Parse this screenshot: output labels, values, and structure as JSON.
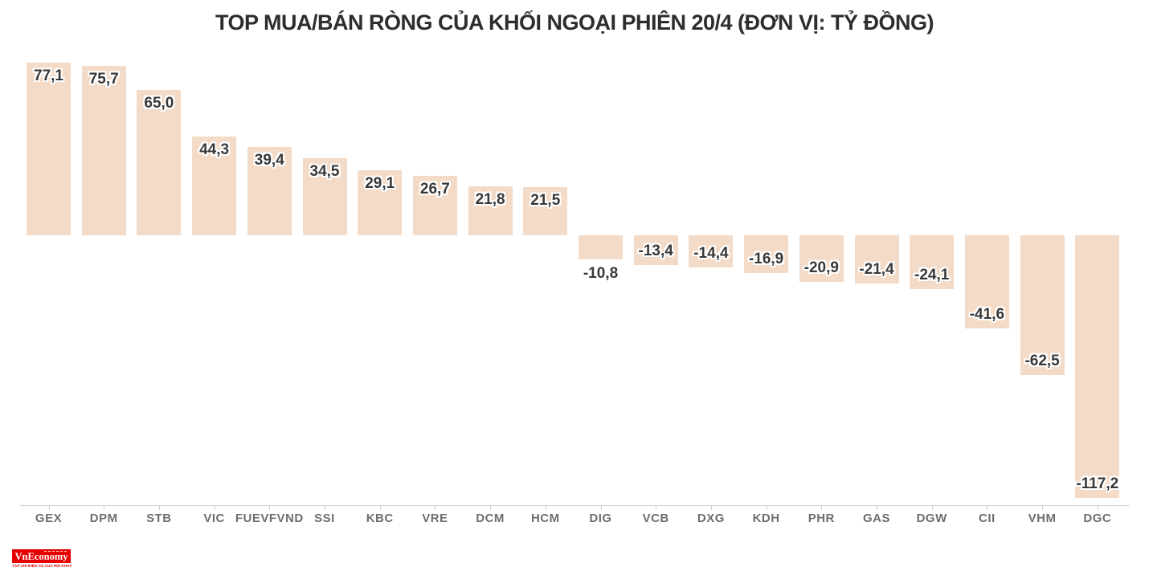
{
  "title": "TOP MUA/BÁN RÒNG CỦA KHỐI NGOẠI PHIÊN 20/4 (ĐƠN VỊ: TỶ ĐỒNG)",
  "chart_data": {
    "type": "bar",
    "title": "TOP MUA/BÁN RÒNG CỦA KHỐI NGOẠI PHIÊN 20/4 (ĐƠN VỊ: TỶ ĐỒNG)",
    "unit": "tỷ đồng",
    "categories": [
      "GEX",
      "DPM",
      "STB",
      "VIC",
      "FUEVFVND",
      "SSI",
      "KBC",
      "VRE",
      "DCM",
      "HCM",
      "DIG",
      "VCB",
      "DXG",
      "KDH",
      "PHR",
      "GAS",
      "DGW",
      "CII",
      "VHM",
      "DGC"
    ],
    "values": [
      77.1,
      75.7,
      65.0,
      44.3,
      39.4,
      34.5,
      29.1,
      26.7,
      21.8,
      21.5,
      -10.8,
      -13.4,
      -14.4,
      -16.9,
      -20.9,
      -21.4,
      -24.1,
      -41.6,
      -62.5,
      -117.2
    ],
    "value_labels": [
      "77,1",
      "75,7",
      "65,0",
      "44,3",
      "39,4",
      "34,5",
      "29,1",
      "26,7",
      "21,8",
      "21,5",
      "-10,8",
      "-13,4",
      "-14,4",
      "-16,9",
      "-20,9",
      "-21,4",
      "-24,1",
      "-41,6",
      "-62,5",
      "-117,2"
    ],
    "bar_color": "#f3dbc7",
    "value_label_color": "#383838",
    "axis_label_color": "#6e6e6e",
    "axis_line_color": "#d6d6d6",
    "ylim": [
      -117.2,
      77.1
    ],
    "grid": false,
    "legend": "none"
  },
  "footer": {
    "logo_text": "VnEconomy",
    "logo_bg_color": "#e60000",
    "logo_text_color": "#ffffff",
    "tagline": "TẠP CHÍ ĐIỆN TỬ CỦA HỘI KHOA HỌC KINH TẾ VIỆT NAM"
  }
}
